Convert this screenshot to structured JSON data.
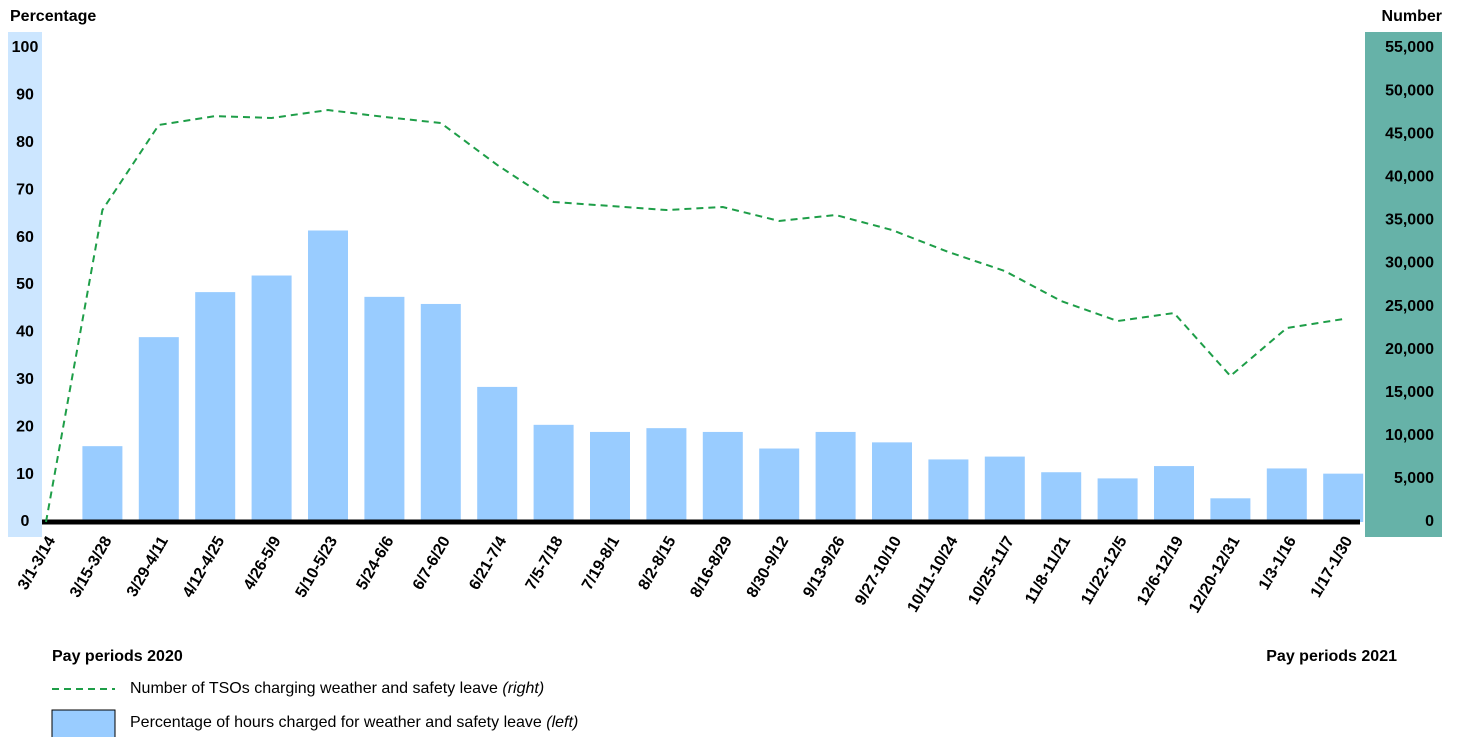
{
  "chart_data": {
    "type": "bar_line",
    "y_label": "Percentage",
    "y2_label": "Number",
    "x_label_left": "Pay periods 2020",
    "x_label_right": "Pay periods 2021",
    "categories": [
      "3/1-3/14",
      "3/15-3/28",
      "3/29-4/11",
      "4/12-4/25",
      "4/26-5/9",
      "5/10-5/23",
      "5/24-6/6",
      "6/7-6/20",
      "6/21-7/4",
      "7/5-7/18",
      "7/19-8/1",
      "8/2-8/15",
      "8/16-8/29",
      "8/30-9/12",
      "9/13-9/26",
      "9/27-10/10",
      "10/11-10/24",
      "10/25-11/7",
      "11/8-11/21",
      "11/22-12/5",
      "12/6-12/19",
      "12/20-12/31",
      "1/3-1/16",
      "1/17-1/30"
    ],
    "series": [
      {
        "name": "Number of TSOs charging weather and safety leave",
        "side_label": "(right)",
        "type": "line",
        "axis": "y2",
        "color": "#1e9e48",
        "values": [
          0,
          36200,
          46070,
          47100,
          46880,
          47800,
          47000,
          46300,
          41430,
          37130,
          36670,
          36200,
          36550,
          34930,
          35620,
          33880,
          31330,
          29120,
          25640,
          23320,
          24250,
          16940,
          22510,
          23550
        ]
      },
      {
        "name": "Percentage of hours charged for weather and safety leave",
        "side_label": "(left)",
        "type": "bar",
        "axis": "y",
        "color": "#99ccff",
        "values": [
          0,
          16,
          39,
          48.5,
          52,
          61.5,
          47.5,
          46,
          28.5,
          20.5,
          19,
          19.8,
          19,
          15.5,
          19,
          16.8,
          13.2,
          13.8,
          10.5,
          9.2,
          11.8,
          5,
          11.3,
          10.2
        ]
      }
    ],
    "ylim": [
      0,
      100
    ],
    "yticks": [
      0,
      10,
      20,
      30,
      40,
      50,
      60,
      70,
      80,
      90,
      100
    ],
    "y2lim": [
      0,
      55000
    ],
    "y2ticks": [
      0,
      {
        "value": 5000,
        "label": "5,000"
      },
      {
        "value": 10000,
        "label": "10,000"
      },
      {
        "value": 15000,
        "label": "15,000"
      },
      {
        "value": 20000,
        "label": "20,000"
      },
      {
        "value": 25000,
        "label": "25,000"
      },
      {
        "value": 30000,
        "label": "30,000"
      },
      {
        "value": 35000,
        "label": "35,000"
      },
      {
        "value": 40000,
        "label": "40,000"
      },
      {
        "value": 45000,
        "label": "45,000"
      },
      {
        "value": 50000,
        "label": "50,000"
      },
      {
        "value": 55000,
        "label": "55,000"
      }
    ],
    "y_band_color": "#cce6ff",
    "y2_band_color": "#66b2a8"
  }
}
